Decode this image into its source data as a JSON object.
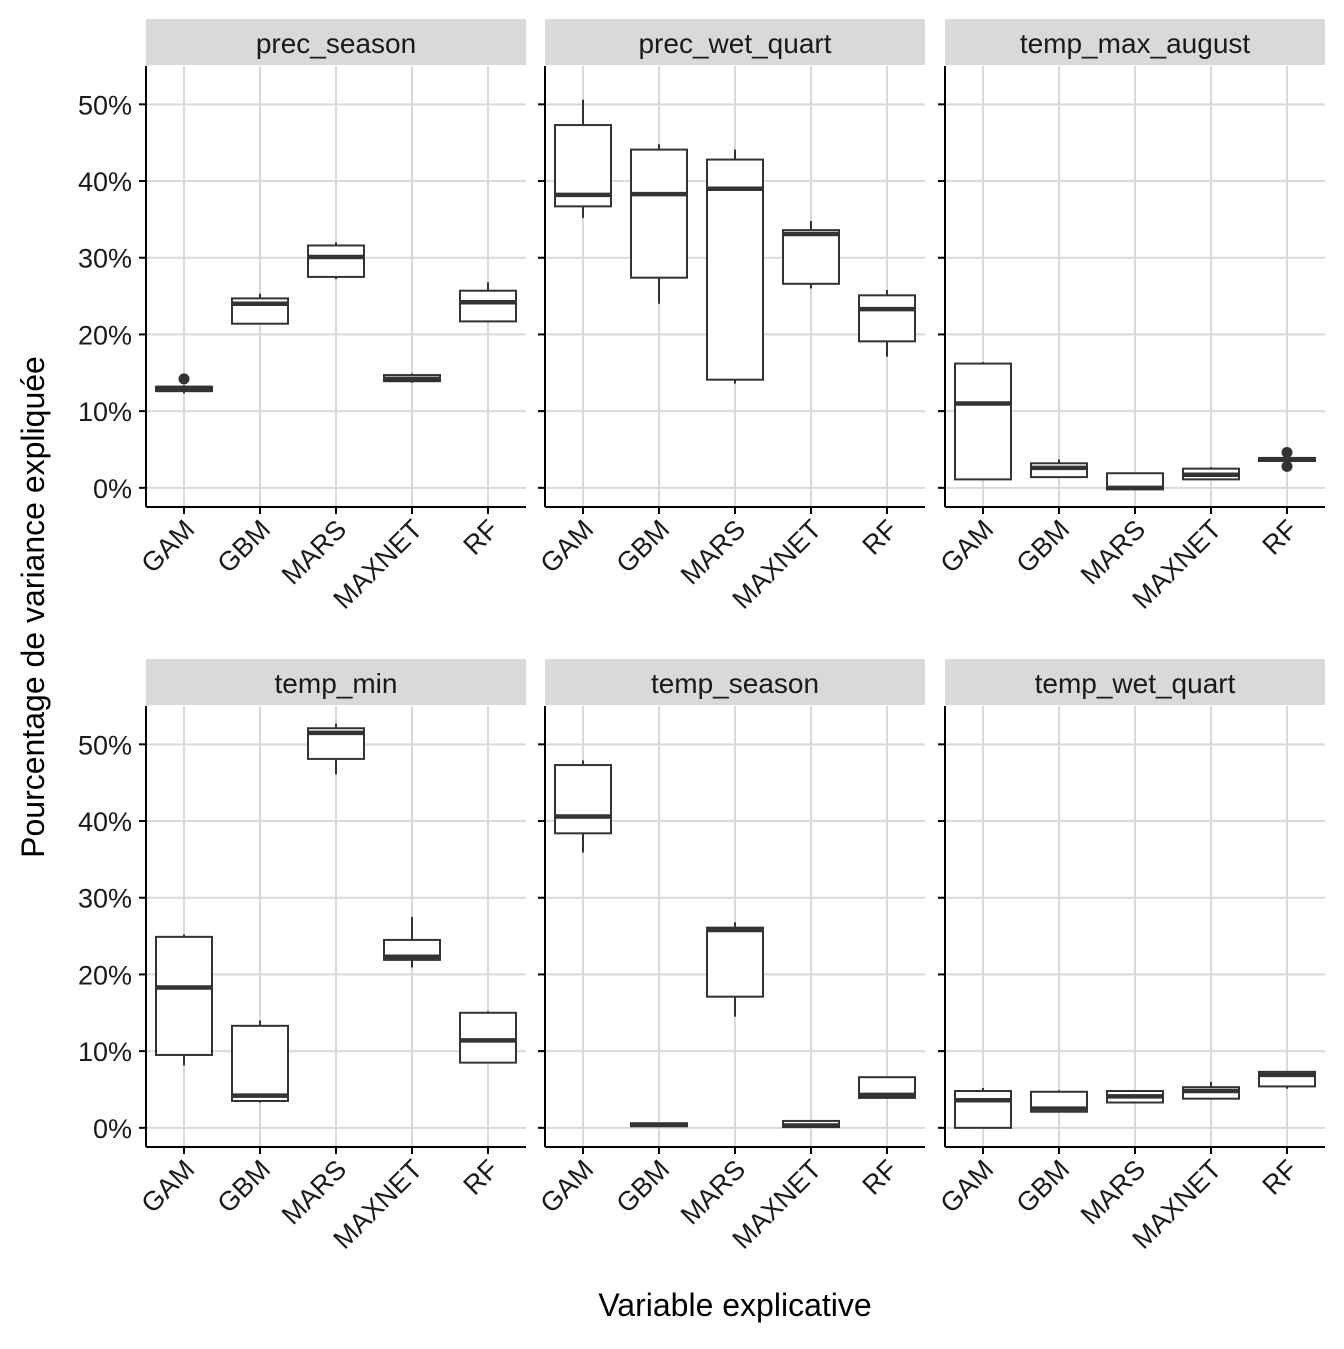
{
  "chart_data": {
    "type": "boxplot",
    "facet_layout": "3x2",
    "x_label": "Variable explicative",
    "y_label": "Pourcentage de variance expliquée",
    "y_range": [
      -2.5,
      55
    ],
    "y_ticks": [
      0,
      10,
      20,
      30,
      40,
      50
    ],
    "y_tick_labels": [
      "0%",
      "10%",
      "20%",
      "30%",
      "40%",
      "50%"
    ],
    "categories": [
      "GAM",
      "GBM",
      "MARS",
      "MAXNET",
      "RF"
    ],
    "grid": true,
    "colors": {
      "strip_background": "#d9d9d9",
      "grid": "#d9d9d9",
      "box_stroke": "#333333",
      "box_fill": "#ffffff",
      "axis": "#000000"
    },
    "facets": [
      {
        "title": "prec_season",
        "boxes": [
          {
            "category": "GAM",
            "min": 12.3,
            "q1": 12.6,
            "median": 12.8,
            "q3": 13.2,
            "max": 13.4,
            "outliers": [
              14.2
            ]
          },
          {
            "category": "GBM",
            "min": 21.3,
            "q1": 21.4,
            "median": 24.0,
            "q3": 24.7,
            "max": 25.3,
            "outliers": []
          },
          {
            "category": "MARS",
            "min": 27.2,
            "q1": 27.5,
            "median": 30.1,
            "q3": 31.6,
            "max": 32.0,
            "outliers": []
          },
          {
            "category": "MAXNET",
            "min": 13.7,
            "q1": 13.9,
            "median": 14.2,
            "q3": 14.7,
            "max": 14.9,
            "outliers": []
          },
          {
            "category": "RF",
            "min": 21.6,
            "q1": 21.7,
            "median": 24.2,
            "q3": 25.7,
            "max": 26.8,
            "outliers": []
          }
        ]
      },
      {
        "title": "prec_wet_quart",
        "boxes": [
          {
            "category": "GAM",
            "min": 35.2,
            "q1": 36.7,
            "median": 38.2,
            "q3": 47.3,
            "max": 50.6,
            "outliers": []
          },
          {
            "category": "GBM",
            "min": 24.0,
            "q1": 27.4,
            "median": 38.3,
            "q3": 44.1,
            "max": 44.8,
            "outliers": []
          },
          {
            "category": "MARS",
            "min": 13.6,
            "q1": 14.1,
            "median": 39.0,
            "q3": 42.8,
            "max": 44.1,
            "outliers": []
          },
          {
            "category": "MAXNET",
            "min": 26.0,
            "q1": 26.6,
            "median": 33.1,
            "q3": 33.6,
            "max": 34.8,
            "outliers": []
          },
          {
            "category": "RF",
            "min": 17.1,
            "q1": 19.1,
            "median": 23.3,
            "q3": 25.1,
            "max": 25.8,
            "outliers": []
          }
        ]
      },
      {
        "title": "temp_max_august",
        "boxes": [
          {
            "category": "GAM",
            "min": 1.1,
            "q1": 1.1,
            "median": 11.0,
            "q3": 16.2,
            "max": 16.4,
            "outliers": []
          },
          {
            "category": "GBM",
            "min": 1.4,
            "q1": 1.4,
            "median": 2.6,
            "q3": 3.2,
            "max": 3.7,
            "outliers": []
          },
          {
            "category": "MARS",
            "min": -0.2,
            "q1": -0.2,
            "median": 0.0,
            "q3": 1.9,
            "max": 1.9,
            "outliers": []
          },
          {
            "category": "MAXNET",
            "min": 1.1,
            "q1": 1.1,
            "median": 1.7,
            "q3": 2.5,
            "max": 2.7,
            "outliers": []
          },
          {
            "category": "RF",
            "min": 3.4,
            "q1": 3.5,
            "median": 3.7,
            "q3": 3.9,
            "max": 4.1,
            "outliers": [
              2.8,
              4.6
            ]
          }
        ]
      },
      {
        "title": "temp_min",
        "boxes": [
          {
            "category": "GAM",
            "min": 8.1,
            "q1": 9.5,
            "median": 18.3,
            "q3": 24.9,
            "max": 25.2,
            "outliers": []
          },
          {
            "category": "GBM",
            "min": 3.3,
            "q1": 3.5,
            "median": 4.2,
            "q3": 13.3,
            "max": 14.0,
            "outliers": []
          },
          {
            "category": "MARS",
            "min": 46.1,
            "q1": 48.1,
            "median": 51.5,
            "q3": 52.1,
            "max": 52.7,
            "outliers": []
          },
          {
            "category": "MAXNET",
            "min": 20.9,
            "q1": 21.9,
            "median": 22.3,
            "q3": 24.5,
            "max": 27.5,
            "outliers": []
          },
          {
            "category": "RF",
            "min": 8.4,
            "q1": 8.5,
            "median": 11.4,
            "q3": 15.0,
            "max": 15.2,
            "outliers": []
          }
        ]
      },
      {
        "title": "temp_season",
        "boxes": [
          {
            "category": "GAM",
            "min": 35.9,
            "q1": 38.4,
            "median": 40.6,
            "q3": 47.3,
            "max": 47.9,
            "outliers": []
          },
          {
            "category": "GBM",
            "min": 0.2,
            "q1": 0.2,
            "median": 0.4,
            "q3": 0.6,
            "max": 0.6,
            "outliers": []
          },
          {
            "category": "MARS",
            "min": 14.5,
            "q1": 17.1,
            "median": 25.8,
            "q3": 26.1,
            "max": 26.8,
            "outliers": []
          },
          {
            "category": "MAXNET",
            "min": 0.1,
            "q1": 0.1,
            "median": 0.3,
            "q3": 0.9,
            "max": 0.9,
            "outliers": []
          },
          {
            "category": "RF",
            "min": 3.8,
            "q1": 3.9,
            "median": 4.3,
            "q3": 6.6,
            "max": 6.6,
            "outliers": []
          }
        ]
      },
      {
        "title": "temp_wet_quart",
        "boxes": [
          {
            "category": "GAM",
            "min": 0.0,
            "q1": 0.0,
            "median": 3.6,
            "q3": 4.8,
            "max": 5.2,
            "outliers": []
          },
          {
            "category": "GBM",
            "min": 2.1,
            "q1": 2.1,
            "median": 2.5,
            "q3": 4.7,
            "max": 4.9,
            "outliers": []
          },
          {
            "category": "MARS",
            "min": 3.3,
            "q1": 3.3,
            "median": 4.1,
            "q3": 4.8,
            "max": 4.9,
            "outliers": []
          },
          {
            "category": "MAXNET",
            "min": 3.8,
            "q1": 3.8,
            "median": 4.8,
            "q3": 5.3,
            "max": 6.0,
            "outliers": []
          },
          {
            "category": "RF",
            "min": 5.1,
            "q1": 5.4,
            "median": 6.9,
            "q3": 7.3,
            "max": 7.3,
            "outliers": []
          }
        ]
      }
    ]
  }
}
